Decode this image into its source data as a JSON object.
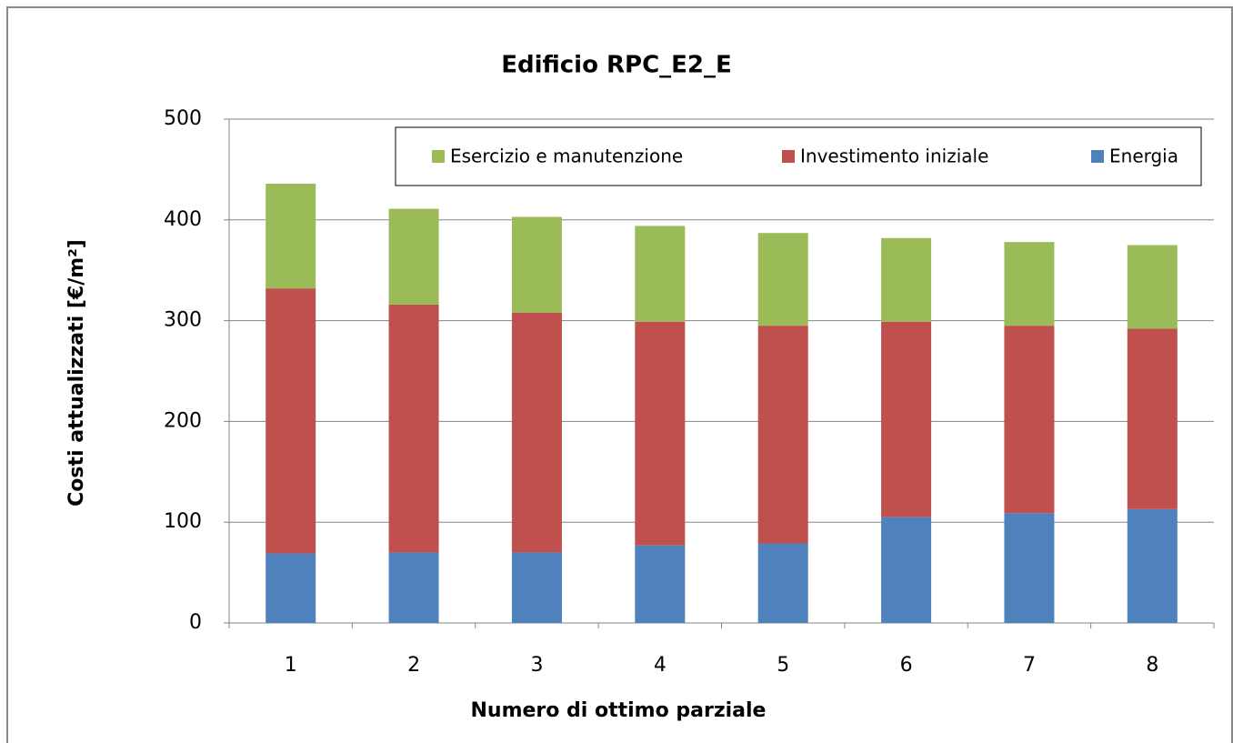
{
  "chart_data": {
    "type": "stacked-bar",
    "title": "Edificio RPC_E2_E",
    "x_label": "Numero di ottimo parziale",
    "y_label": "Costi attualizzati [€/m²]",
    "categories": [
      "1",
      "2",
      "3",
      "4",
      "5",
      "6",
      "7",
      "8"
    ],
    "series": [
      {
        "name": "Energia",
        "color": "#4f81bd",
        "values": [
          69,
          70,
          70,
          77,
          79,
          105,
          109,
          113
        ]
      },
      {
        "name": "Investimento iniziale",
        "color": "#c0504d",
        "values": [
          263,
          246,
          238,
          222,
          216,
          194,
          186,
          179
        ]
      },
      {
        "name": "Esercizio e manutenzione",
        "color": "#9bbb59",
        "values": [
          104,
          95,
          95,
          95,
          92,
          83,
          83,
          83
        ]
      }
    ],
    "ylim": [
      0,
      500
    ],
    "yticks": [
      0,
      100,
      200,
      300,
      400,
      500
    ],
    "grid": true,
    "legend": "top-right"
  }
}
